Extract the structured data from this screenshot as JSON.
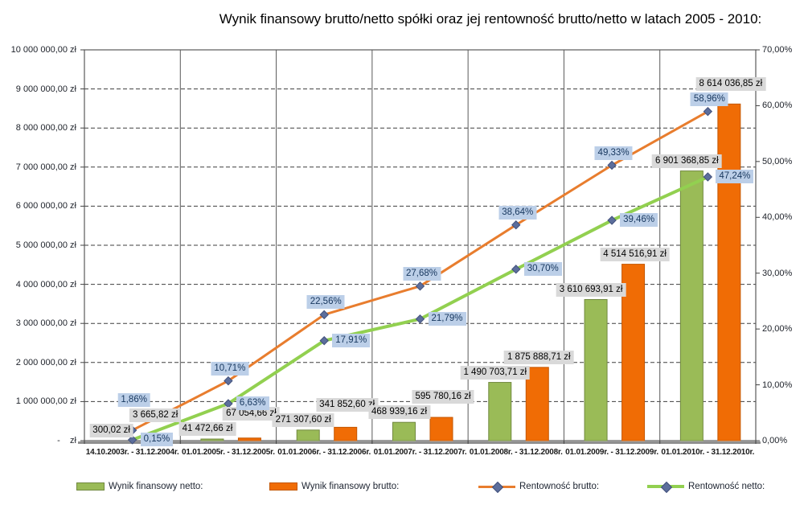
{
  "chart_data": {
    "type": "combo",
    "title": "Wynik finansowy brutto/netto spółki oraz jej rentowność brutto/netto w latach 2005 - 2010:",
    "categories": [
      "14.10.2003r. - 31.12.2004r.",
      "01.01.2005r. - 31.12.2005r.",
      "01.01.2006r. - 31.12.2006r.",
      "01.01.2007r. - 31.12.2007r.",
      "01.01.2008r. - 31.12.2008r.",
      "01.01.2009r. - 31.12.2009r.",
      "01.01.2010r. - 31.12.2010r."
    ],
    "series": [
      {
        "name": "Wynik finansowy netto:",
        "type": "bar",
        "axis": "left",
        "values": [
          300.02,
          41472.66,
          271307.6,
          468939.16,
          1490703.71,
          3610693.91,
          6901368.85
        ],
        "labels": [
          "300,02 zł",
          "41 472,66 zł",
          "271 307,60 zł",
          "468 939,16 zł",
          "1 490 703,71 zł",
          "3 610 693,91 zł",
          "6 901 368,85 zł"
        ]
      },
      {
        "name": "Wynik finansowy brutto:",
        "type": "bar",
        "axis": "left",
        "values": [
          3665.82,
          67054.66,
          341852.6,
          595780.16,
          1875888.71,
          4514516.91,
          8614036.85
        ],
        "labels": [
          "3 665,82 zł",
          "67 054,66 zł",
          "341 852,60 zł",
          "595 780,16 zł",
          "1 875 888,71 zł",
          "4 514 516,91 zł",
          "8 614 036,85 zł"
        ]
      },
      {
        "name": "Rentowność brutto:",
        "type": "line",
        "axis": "right",
        "values": [
          1.86,
          10.71,
          22.56,
          27.68,
          38.64,
          49.33,
          58.96
        ],
        "labels": [
          "1,86%",
          "10,71%",
          "22,56%",
          "27,68%",
          "38,64%",
          "49,33%",
          "58,96%"
        ]
      },
      {
        "name": "Rentowność netto:",
        "type": "line",
        "axis": "right",
        "values": [
          0.15,
          6.63,
          17.91,
          21.79,
          30.7,
          39.46,
          47.24
        ],
        "labels": [
          "0,15%",
          "6,63%",
          "17,91%",
          "21,79%",
          "30,70%",
          "39,46%",
          "47,24%"
        ]
      }
    ],
    "left_axis": {
      "min": 0,
      "max": 10000000,
      "ticks": [
        "10 000 000,00 zł",
        "9 000 000,00 zł",
        "8 000 000,00 zł",
        "7 000 000,00 zł",
        "6 000 000,00 zł",
        "5 000 000,00 zł",
        "4 000 000,00 zł",
        "3 000 000,00 zł",
        "2 000 000,00 zł",
        "1 000 000,00 zł",
        "-    zł"
      ]
    },
    "right_axis": {
      "min": 0,
      "max": 70,
      "ticks": [
        "70,00%",
        "60,00%",
        "50,00%",
        "40,00%",
        "30,00%",
        "20,00%",
        "10,00%",
        "0,00%"
      ]
    },
    "grid": "dashed-horizontal, solid-vertical-category-lines",
    "legend_position": "bottom",
    "style": {
      "bar_netto_fill": "#9ABB57",
      "bar_netto_border": "#71893F",
      "bar_brutto_fill": "#F06C05",
      "bar_brutto_border": "#C45702",
      "line_brutto": "#E87D2E",
      "line_netto": "#92D050",
      "marker_fill": "#5C6E9C",
      "marker_border": "#42517C",
      "money_label_bg": "#D9D9D9",
      "pct_label_bg": "#BCCFE8",
      "pct_label_text": "#17375E",
      "grid_color": "#3F3F3F",
      "frame_color": "#595959",
      "baseline_shadow": "#8F8F8F"
    }
  }
}
